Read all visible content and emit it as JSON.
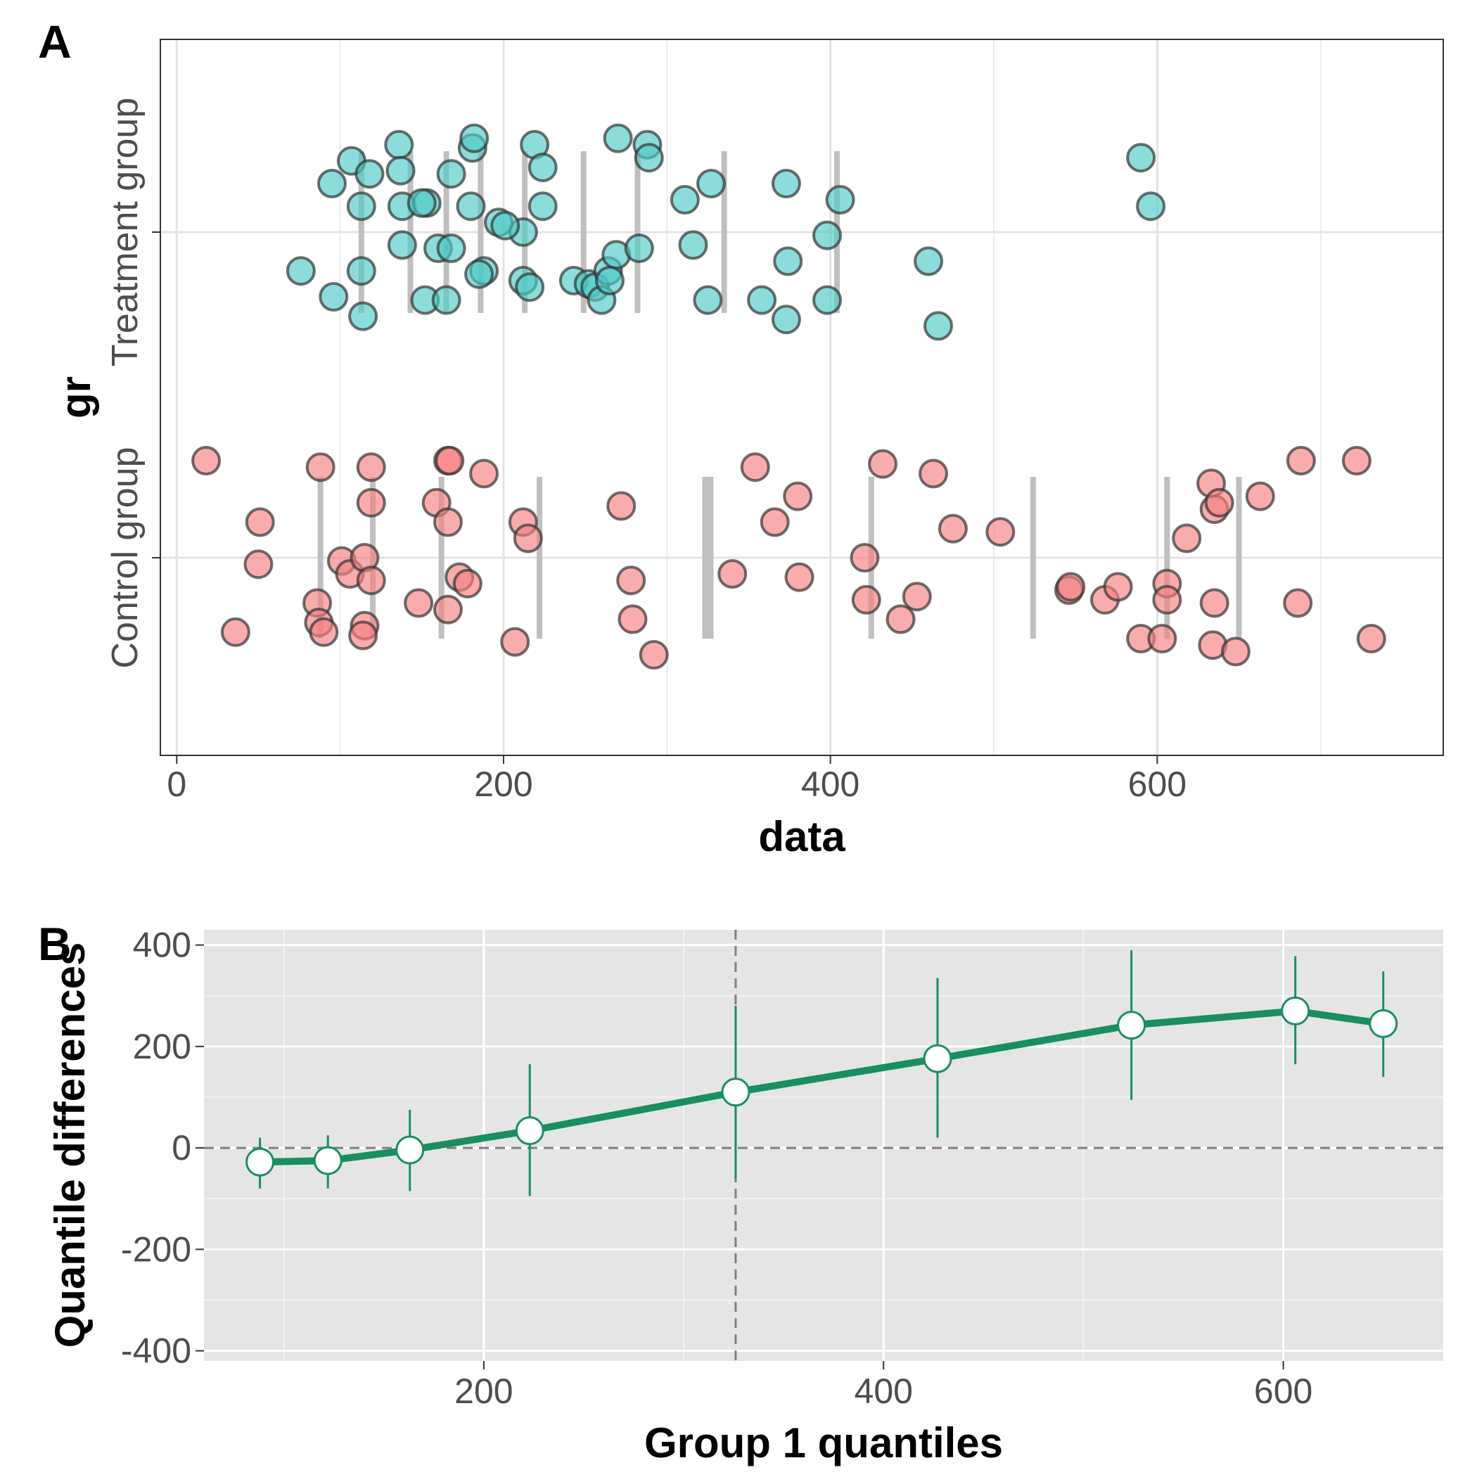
{
  "chart_data": [
    {
      "panel_label": "A",
      "type": "scatter",
      "xlabel": "data",
      "ylabel": "gr",
      "xlim": [
        -10,
        775
      ],
      "xticks": [
        0,
        200,
        400,
        600
      ],
      "xtick_labels": [
        "0",
        "200",
        "400",
        "600"
      ],
      "categories": [
        "Control group",
        "Treatment group"
      ],
      "grid": true,
      "series": [
        {
          "name": "Treatment group",
          "category": "Treatment group",
          "color": "#4dc9c6",
          "points": [
            [
              107,
              0.22
            ],
            [
              95,
              0.15
            ],
            [
              118,
              0.18
            ],
            [
              136,
              0.27
            ],
            [
              137,
              0.19
            ],
            [
              113,
              0.08
            ],
            [
              138,
              0.08
            ],
            [
              153,
              0.09
            ],
            [
              168,
              0.18
            ],
            [
              181,
              0.26
            ],
            [
              182,
              0.29
            ],
            [
              180,
              0.08
            ],
            [
              219,
              0.27
            ],
            [
              224,
              0.2
            ],
            [
              224,
              0.08
            ],
            [
              212,
              0.0
            ],
            [
              197,
              0.03
            ],
            [
              201,
              0.02
            ],
            [
              160,
              -0.05
            ],
            [
              168,
              -0.05
            ],
            [
              138,
              -0.04
            ],
            [
              150,
              0.09
            ],
            [
              188,
              -0.12
            ],
            [
              185,
              -0.13
            ],
            [
              76,
              -0.12
            ],
            [
              96,
              -0.2
            ],
            [
              113,
              -0.12
            ],
            [
              114,
              -0.26
            ],
            [
              152,
              -0.21
            ],
            [
              165,
              -0.21
            ],
            [
              212,
              -0.15
            ],
            [
              216,
              -0.17
            ],
            [
              243,
              -0.15
            ],
            [
              252,
              -0.16
            ],
            [
              256,
              -0.17
            ],
            [
              260,
              -0.21
            ],
            [
              264,
              -0.12
            ],
            [
              269,
              -0.07
            ],
            [
              265,
              -0.15
            ],
            [
              283,
              -0.05
            ],
            [
              270,
              0.29
            ],
            [
              288,
              0.27
            ],
            [
              289,
              0.23
            ],
            [
              311,
              0.1
            ],
            [
              327,
              0.15
            ],
            [
              316,
              -0.04
            ],
            [
              325,
              -0.21
            ],
            [
              358,
              -0.21
            ],
            [
              373,
              0.15
            ],
            [
              374,
              -0.09
            ],
            [
              373,
              -0.27
            ],
            [
              398,
              -0.01
            ],
            [
              398,
              -0.21
            ],
            [
              406,
              0.1
            ],
            [
              460,
              -0.09
            ],
            [
              466,
              -0.29
            ],
            [
              590,
              0.23
            ],
            [
              596,
              0.08
            ]
          ]
        },
        {
          "name": "Control group",
          "category": "Control group",
          "color": "#f4807f",
          "points": [
            [
              18,
              1.3
            ],
            [
              36,
              0.77
            ],
            [
              51,
              1.11
            ],
            [
              50,
              0.98
            ],
            [
              88,
              1.28
            ],
            [
              86,
              0.86
            ],
            [
              87,
              0.8
            ],
            [
              90,
              0.77
            ],
            [
              101,
              0.99
            ],
            [
              106,
              0.95
            ],
            [
              115,
              1.0
            ],
            [
              119,
              0.93
            ],
            [
              115,
              0.79
            ],
            [
              114,
              0.76
            ],
            [
              119,
              1.28
            ],
            [
              119,
              1.17
            ],
            [
              148,
              0.86
            ],
            [
              159,
              1.17
            ],
            [
              166,
              1.3
            ],
            [
              167,
              1.3
            ],
            [
              166,
              1.11
            ],
            [
              166,
              0.84
            ],
            [
              173,
              0.94
            ],
            [
              178,
              0.92
            ],
            [
              188,
              1.26
            ],
            [
              212,
              1.11
            ],
            [
              215,
              1.06
            ],
            [
              207,
              0.74
            ],
            [
              272,
              1.16
            ],
            [
              278,
              0.93
            ],
            [
              279,
              0.81
            ],
            [
              292,
              0.7
            ],
            [
              340,
              0.95
            ],
            [
              354,
              1.28
            ],
            [
              366,
              1.11
            ],
            [
              380,
              1.19
            ],
            [
              381,
              0.94
            ],
            [
              421,
              1.0
            ],
            [
              422,
              0.87
            ],
            [
              432,
              1.29
            ],
            [
              443,
              0.81
            ],
            [
              453,
              0.88
            ],
            [
              463,
              1.26
            ],
            [
              475,
              1.09
            ],
            [
              504,
              1.08
            ],
            [
              546,
              0.9
            ],
            [
              547,
              0.91
            ],
            [
              568,
              0.87
            ],
            [
              576,
              0.91
            ],
            [
              590,
              0.75
            ],
            [
              603,
              0.75
            ],
            [
              606,
              0.92
            ],
            [
              606,
              0.87
            ],
            [
              618,
              1.06
            ],
            [
              633,
              1.23
            ],
            [
              635,
              1.15
            ],
            [
              638,
              1.17
            ],
            [
              635,
              0.86
            ],
            [
              634,
              0.73
            ],
            [
              648,
              0.71
            ],
            [
              663,
              1.19
            ],
            [
              688,
              1.3
            ],
            [
              686,
              0.86
            ],
            [
              722,
              1.3
            ],
            [
              731,
              0.75
            ]
          ]
        }
      ],
      "decile_markers": {
        "color": "#bfbfbf",
        "Treatment group": [
          113,
          143,
          165,
          186,
          213,
          249,
          282,
          335,
          404
        ],
        "Control group": [
          88,
          120,
          162,
          222,
          325,
          425,
          524,
          606,
          650
        ],
        "Control group median": 325
      }
    },
    {
      "panel_label": "B",
      "type": "line",
      "xlabel": "Group 1 quantiles",
      "ylabel": "Quantile differences",
      "xlim": [
        60,
        680
      ],
      "ylim": [
        -420,
        430
      ],
      "xticks": [
        200,
        400,
        600
      ],
      "xtick_labels": [
        "200",
        "400",
        "600"
      ],
      "yticks": [
        -400,
        -200,
        0,
        200,
        400
      ],
      "ytick_labels": [
        "-400",
        "-200",
        "0",
        "200",
        "400"
      ],
      "grid": true,
      "line_color": "#188f60",
      "reference_x": 326,
      "reference_y": 0,
      "series": [
        {
          "x": [
            88,
            122,
            163,
            223,
            326,
            427,
            524,
            606,
            650
          ],
          "y": [
            -28,
            -25,
            -4,
            34,
            110,
            176,
            242,
            270,
            245
          ],
          "ci_low": [
            -80,
            -80,
            -85,
            -95,
            -60,
            20,
            95,
            165,
            140
          ],
          "ci_high": [
            20,
            25,
            75,
            165,
            280,
            335,
            390,
            378,
            348
          ]
        }
      ]
    }
  ]
}
